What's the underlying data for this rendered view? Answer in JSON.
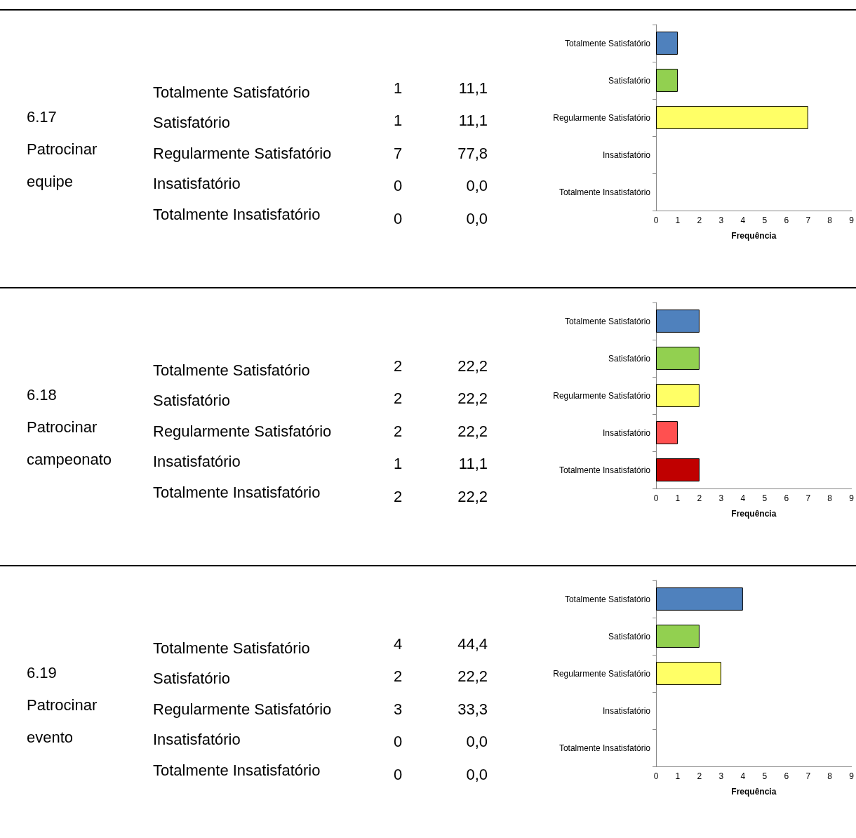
{
  "chart_data": [
    {
      "type": "other",
      "title": "6.17 Patrocinar equipe",
      "categories": [
        "Totalmente Satisfatório",
        "Satisfatório",
        "Regularmente Satisfatório",
        "Insatisfatório",
        "Totalmente Insatisfatório"
      ],
      "annotations": [
        "1",
        "11,1",
        "1",
        "11,1",
        "7",
        "77,8",
        "0",
        "0,0",
        "0",
        "0,0"
      ]
    },
    {
      "type": "bar",
      "orientation": "horizontal",
      "categories": [
        "Totalmente Satisfatório",
        "Satisfatório",
        "Regularmente Satisfatório",
        "Insatisfatório",
        "Totalmente Insatisfatório"
      ],
      "values": [
        1,
        1,
        7,
        0,
        0
      ],
      "colors": [
        "#4f81bd",
        "#92d050",
        "#ffff66",
        "#ff5050",
        "#c00000"
      ],
      "xlabel": "Frequência",
      "xlim": [
        0,
        9
      ],
      "xticks": [
        0,
        1,
        2,
        3,
        4,
        5,
        6,
        7,
        8,
        9
      ]
    },
    {
      "type": "other",
      "title": "6.18 Patrocinar campeonato",
      "categories": [
        "Totalmente Satisfatório",
        "Satisfatório",
        "Regularmente Satisfatório",
        "Insatisfatório",
        "Totalmente Insatisfatório"
      ],
      "annotations": [
        "2",
        "22,2",
        "2",
        "22,2",
        "2",
        "22,2",
        "1",
        "11,1",
        "2",
        "22,2"
      ]
    },
    {
      "type": "bar",
      "orientation": "horizontal",
      "categories": [
        "Totalmente Satisfatório",
        "Satisfatório",
        "Regularmente Satisfatório",
        "Insatisfatório",
        "Totalmente Insatisfatório"
      ],
      "values": [
        2,
        2,
        2,
        1,
        2
      ],
      "colors": [
        "#4f81bd",
        "#92d050",
        "#ffff66",
        "#ff5050",
        "#c00000"
      ],
      "xlabel": "Frequência",
      "xlim": [
        0,
        9
      ],
      "xticks": [
        0,
        1,
        2,
        3,
        4,
        5,
        6,
        7,
        8,
        9
      ]
    },
    {
      "type": "other",
      "title": "6.19 Patrocinar evento",
      "categories": [
        "Totalmente Satisfatório",
        "Satisfatório",
        "Regularmente Satisfatório",
        "Insatisfatório",
        "Totalmente Insatisfatório"
      ],
      "annotations": [
        "4",
        "44,4",
        "2",
        "22,2",
        "3",
        "33,3",
        "0",
        "0,0",
        "0",
        "0,0"
      ]
    },
    {
      "type": "bar",
      "orientation": "horizontal",
      "categories": [
        "Totalmente Satisfatório",
        "Satisfatório",
        "Regularmente Satisfatório",
        "Insatisfatório",
        "Totalmente Insatisfatório"
      ],
      "values": [
        4,
        2,
        3,
        0,
        0
      ],
      "colors": [
        "#4f81bd",
        "#92d050",
        "#ffff66",
        "#ff5050",
        "#c00000"
      ],
      "xlabel": "Frequência",
      "xlim": [
        0,
        9
      ],
      "xticks": [
        0,
        1,
        2,
        3,
        4,
        5,
        6,
        7,
        8,
        9
      ]
    }
  ]
}
